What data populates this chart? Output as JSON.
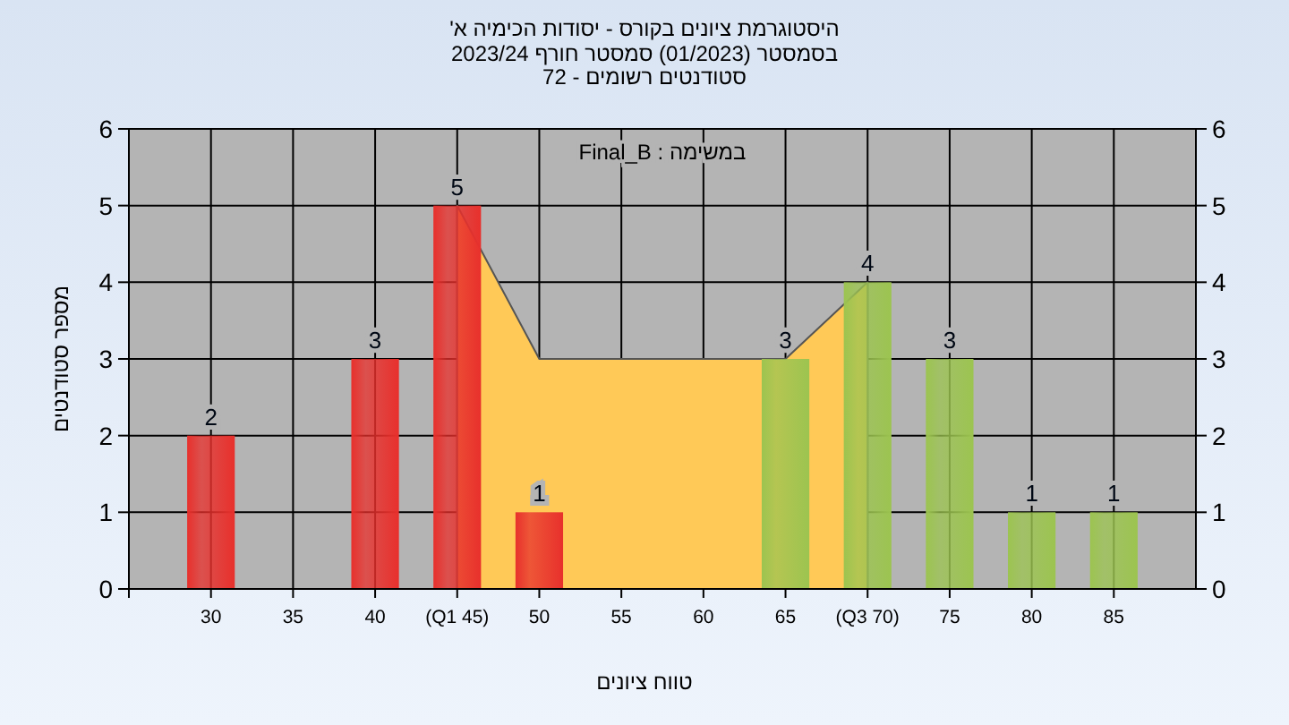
{
  "chart_data": {
    "type": "bar",
    "title": "היסטוגרמת ציונים בקורס - יסודות הכימיה א'",
    "subtitle": "בסמסטר (01/2023) סמסטר חורף 2023/24\nסטודנטים רשומים - 72",
    "xlabel": "טווח ציונים",
    "ylabel": "מספר סטודנטים",
    "annotations": [
      "במשימה : Final_B"
    ],
    "xlim": [
      25,
      90
    ],
    "xticks": [
      {
        "value": 25,
        "label": null
      },
      30,
      35,
      40,
      {
        "value": 45,
        "label": "(Q1 45)"
      },
      50,
      55,
      60,
      65,
      {
        "value": 70,
        "label": "(Q3 70)"
      },
      75,
      80,
      85
    ],
    "ylim": [
      0,
      6
    ],
    "yticks": [
      0,
      1,
      2,
      3,
      4,
      5,
      6
    ],
    "y2lim": [
      0,
      6
    ],
    "y2ticks": [
      0,
      1,
      2,
      3,
      4,
      5,
      6
    ],
    "grid": true,
    "series": [
      {
        "type": "area",
        "color": "#ffc957",
        "x": [
          45,
          50,
          65,
          70
        ],
        "values": [
          5,
          3,
          3,
          4
        ]
      },
      {
        "x": [
          30,
          40,
          45,
          50,
          65,
          70,
          75,
          80,
          85
        ],
        "values": [
          2,
          3,
          5,
          1,
          3,
          4,
          3,
          1,
          1
        ],
        "value_labels": [
          "2",
          "3",
          "5",
          "1",
          "3",
          "4",
          "3",
          "1",
          "1"
        ],
        "colors": [
          "#e8302c",
          "#e8302c",
          "#e8302c",
          "#e8302c",
          "#9cc450",
          "#9cc450",
          "#9cc450",
          "#9cc450",
          "#9cc450"
        ]
      }
    ]
  }
}
